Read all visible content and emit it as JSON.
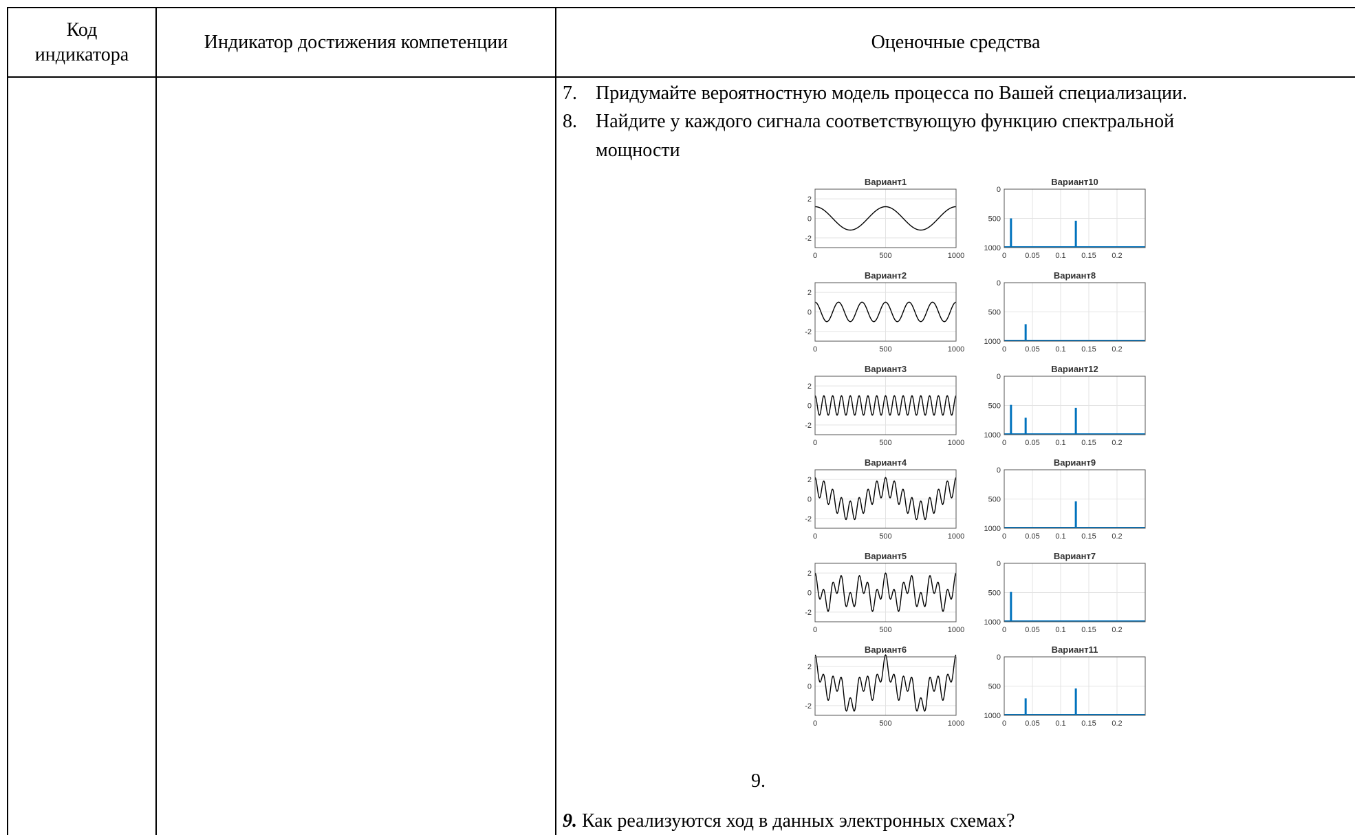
{
  "table": {
    "headers": {
      "code": [
        "Код",
        "индикатора"
      ],
      "indicator": "Индикатор достижения компетенции",
      "assessment": "Оценочные средства"
    }
  },
  "content": {
    "items": [
      {
        "num": "7.",
        "text": "Придумайте вероятностную модель процесса по Вашей специализации."
      },
      {
        "num": "8.",
        "text": "Найдите у каждого сигнала соответствующую функцию спектральной",
        "cont": "мощности"
      }
    ],
    "item9_label": "9.",
    "item9_num": "9.",
    "item9_text": " Как реализуются ход в данных электронных схемах?"
  },
  "figure": {
    "signal_color": "#000000",
    "spectrum_color": "#0072bd",
    "signal_ticks_x": [
      "0",
      "500",
      "1000"
    ],
    "signal_ticks_y": [
      "2",
      "0",
      "-2"
    ],
    "spectrum_ticks_x": [
      "0",
      "0.05",
      "0.1",
      "0.15",
      "0.2"
    ],
    "spectrum_ticks_y": [
      "1000",
      "500",
      "0"
    ],
    "rows": [
      {
        "left_title": "Вариант1",
        "right_title": "Вариант10"
      },
      {
        "left_title": "Вариант2",
        "right_title": "Вариант8"
      },
      {
        "left_title": "Вариант3",
        "right_title": "Вариант12"
      },
      {
        "left_title": "Вариант4",
        "right_title": "Вариант9"
      },
      {
        "left_title": "Вариант5",
        "right_title": "Вариант7"
      },
      {
        "left_title": "Вариант6",
        "right_title": "Вариант11"
      }
    ]
  },
  "chart_data": [
    {
      "type": "line",
      "title": "Вариант1",
      "xlim": [
        0,
        1000
      ],
      "ylim": [
        -3,
        3
      ],
      "components": [
        {
          "amplitude": 1.2,
          "cycles": 2
        }
      ],
      "x_ticks": [
        0,
        500,
        1000
      ],
      "y_ticks": [
        2,
        0,
        -2
      ]
    },
    {
      "type": "line",
      "title": "Вариант2",
      "xlim": [
        0,
        1000
      ],
      "ylim": [
        -3,
        3
      ],
      "components": [
        {
          "amplitude": 1.0,
          "cycles": 6
        }
      ],
      "x_ticks": [
        0,
        500,
        1000
      ],
      "y_ticks": [
        2,
        0,
        -2
      ]
    },
    {
      "type": "line",
      "title": "Вариант3",
      "xlim": [
        0,
        1000
      ],
      "ylim": [
        -3,
        3
      ],
      "components": [
        {
          "amplitude": 1.0,
          "cycles": 16
        }
      ],
      "x_ticks": [
        0,
        500,
        1000
      ],
      "y_ticks": [
        2,
        0,
        -2
      ]
    },
    {
      "type": "line",
      "title": "Вариант4",
      "xlim": [
        0,
        1000
      ],
      "ylim": [
        -3,
        3
      ],
      "components": [
        {
          "amplitude": 1.2,
          "cycles": 2
        },
        {
          "amplitude": 1.0,
          "cycles": 16
        }
      ],
      "x_ticks": [
        0,
        500,
        1000
      ],
      "y_ticks": [
        2,
        0,
        -2
      ]
    },
    {
      "type": "line",
      "title": "Вариант5",
      "xlim": [
        0,
        1000
      ],
      "ylim": [
        -3,
        3
      ],
      "components": [
        {
          "amplitude": 1.0,
          "cycles": 6
        },
        {
          "amplitude": 1.0,
          "cycles": 16
        }
      ],
      "x_ticks": [
        0,
        500,
        1000
      ],
      "y_ticks": [
        2,
        0,
        -2
      ]
    },
    {
      "type": "line",
      "title": "Вариант6",
      "xlim": [
        0,
        1000
      ],
      "ylim": [
        -3,
        3
      ],
      "components": [
        {
          "amplitude": 1.2,
          "cycles": 2
        },
        {
          "amplitude": 1.0,
          "cycles": 6
        },
        {
          "amplitude": 1.0,
          "cycles": 16
        }
      ],
      "x_ticks": [
        0,
        500,
        1000
      ],
      "y_ticks": [
        2,
        0,
        -2
      ]
    },
    {
      "type": "bar",
      "title": "Вариант10",
      "xlim": [
        0,
        0.25
      ],
      "ylim": [
        0,
        1000
      ],
      "peaks": [
        {
          "x": 0.012,
          "value": 500
        },
        {
          "x": 0.127,
          "value": 460
        }
      ],
      "x_ticks": [
        0,
        0.05,
        0.1,
        0.15,
        0.2
      ],
      "y_ticks": [
        0,
        500,
        1000
      ]
    },
    {
      "type": "bar",
      "title": "Вариант8",
      "xlim": [
        0,
        0.25
      ],
      "ylim": [
        0,
        1000
      ],
      "peaks": [
        {
          "x": 0.038,
          "value": 290
        }
      ],
      "x_ticks": [
        0,
        0.05,
        0.1,
        0.15,
        0.2
      ],
      "y_ticks": [
        0,
        500,
        1000
      ]
    },
    {
      "type": "bar",
      "title": "Вариант12",
      "xlim": [
        0,
        0.25
      ],
      "ylim": [
        0,
        1000
      ],
      "peaks": [
        {
          "x": 0.012,
          "value": 510
        },
        {
          "x": 0.038,
          "value": 290
        },
        {
          "x": 0.127,
          "value": 460
        }
      ],
      "x_ticks": [
        0,
        0.05,
        0.1,
        0.15,
        0.2
      ],
      "y_ticks": [
        0,
        500,
        1000
      ]
    },
    {
      "type": "bar",
      "title": "Вариант9",
      "xlim": [
        0,
        0.25
      ],
      "ylim": [
        0,
        1000
      ],
      "peaks": [
        {
          "x": 0.127,
          "value": 460
        }
      ],
      "x_ticks": [
        0,
        0.05,
        0.1,
        0.15,
        0.2
      ],
      "y_ticks": [
        0,
        500,
        1000
      ]
    },
    {
      "type": "bar",
      "title": "Вариант7",
      "xlim": [
        0,
        0.25
      ],
      "ylim": [
        0,
        1000
      ],
      "peaks": [
        {
          "x": 0.012,
          "value": 510
        }
      ],
      "x_ticks": [
        0,
        0.05,
        0.1,
        0.15,
        0.2
      ],
      "y_ticks": [
        0,
        500,
        1000
      ]
    },
    {
      "type": "bar",
      "title": "Вариант11",
      "xlim": [
        0,
        0.25
      ],
      "ylim": [
        0,
        1000
      ],
      "peaks": [
        {
          "x": 0.038,
          "value": 290
        },
        {
          "x": 0.127,
          "value": 460
        }
      ],
      "x_ticks": [
        0,
        0.05,
        0.1,
        0.15,
        0.2
      ],
      "y_ticks": [
        0,
        500,
        1000
      ]
    }
  ]
}
